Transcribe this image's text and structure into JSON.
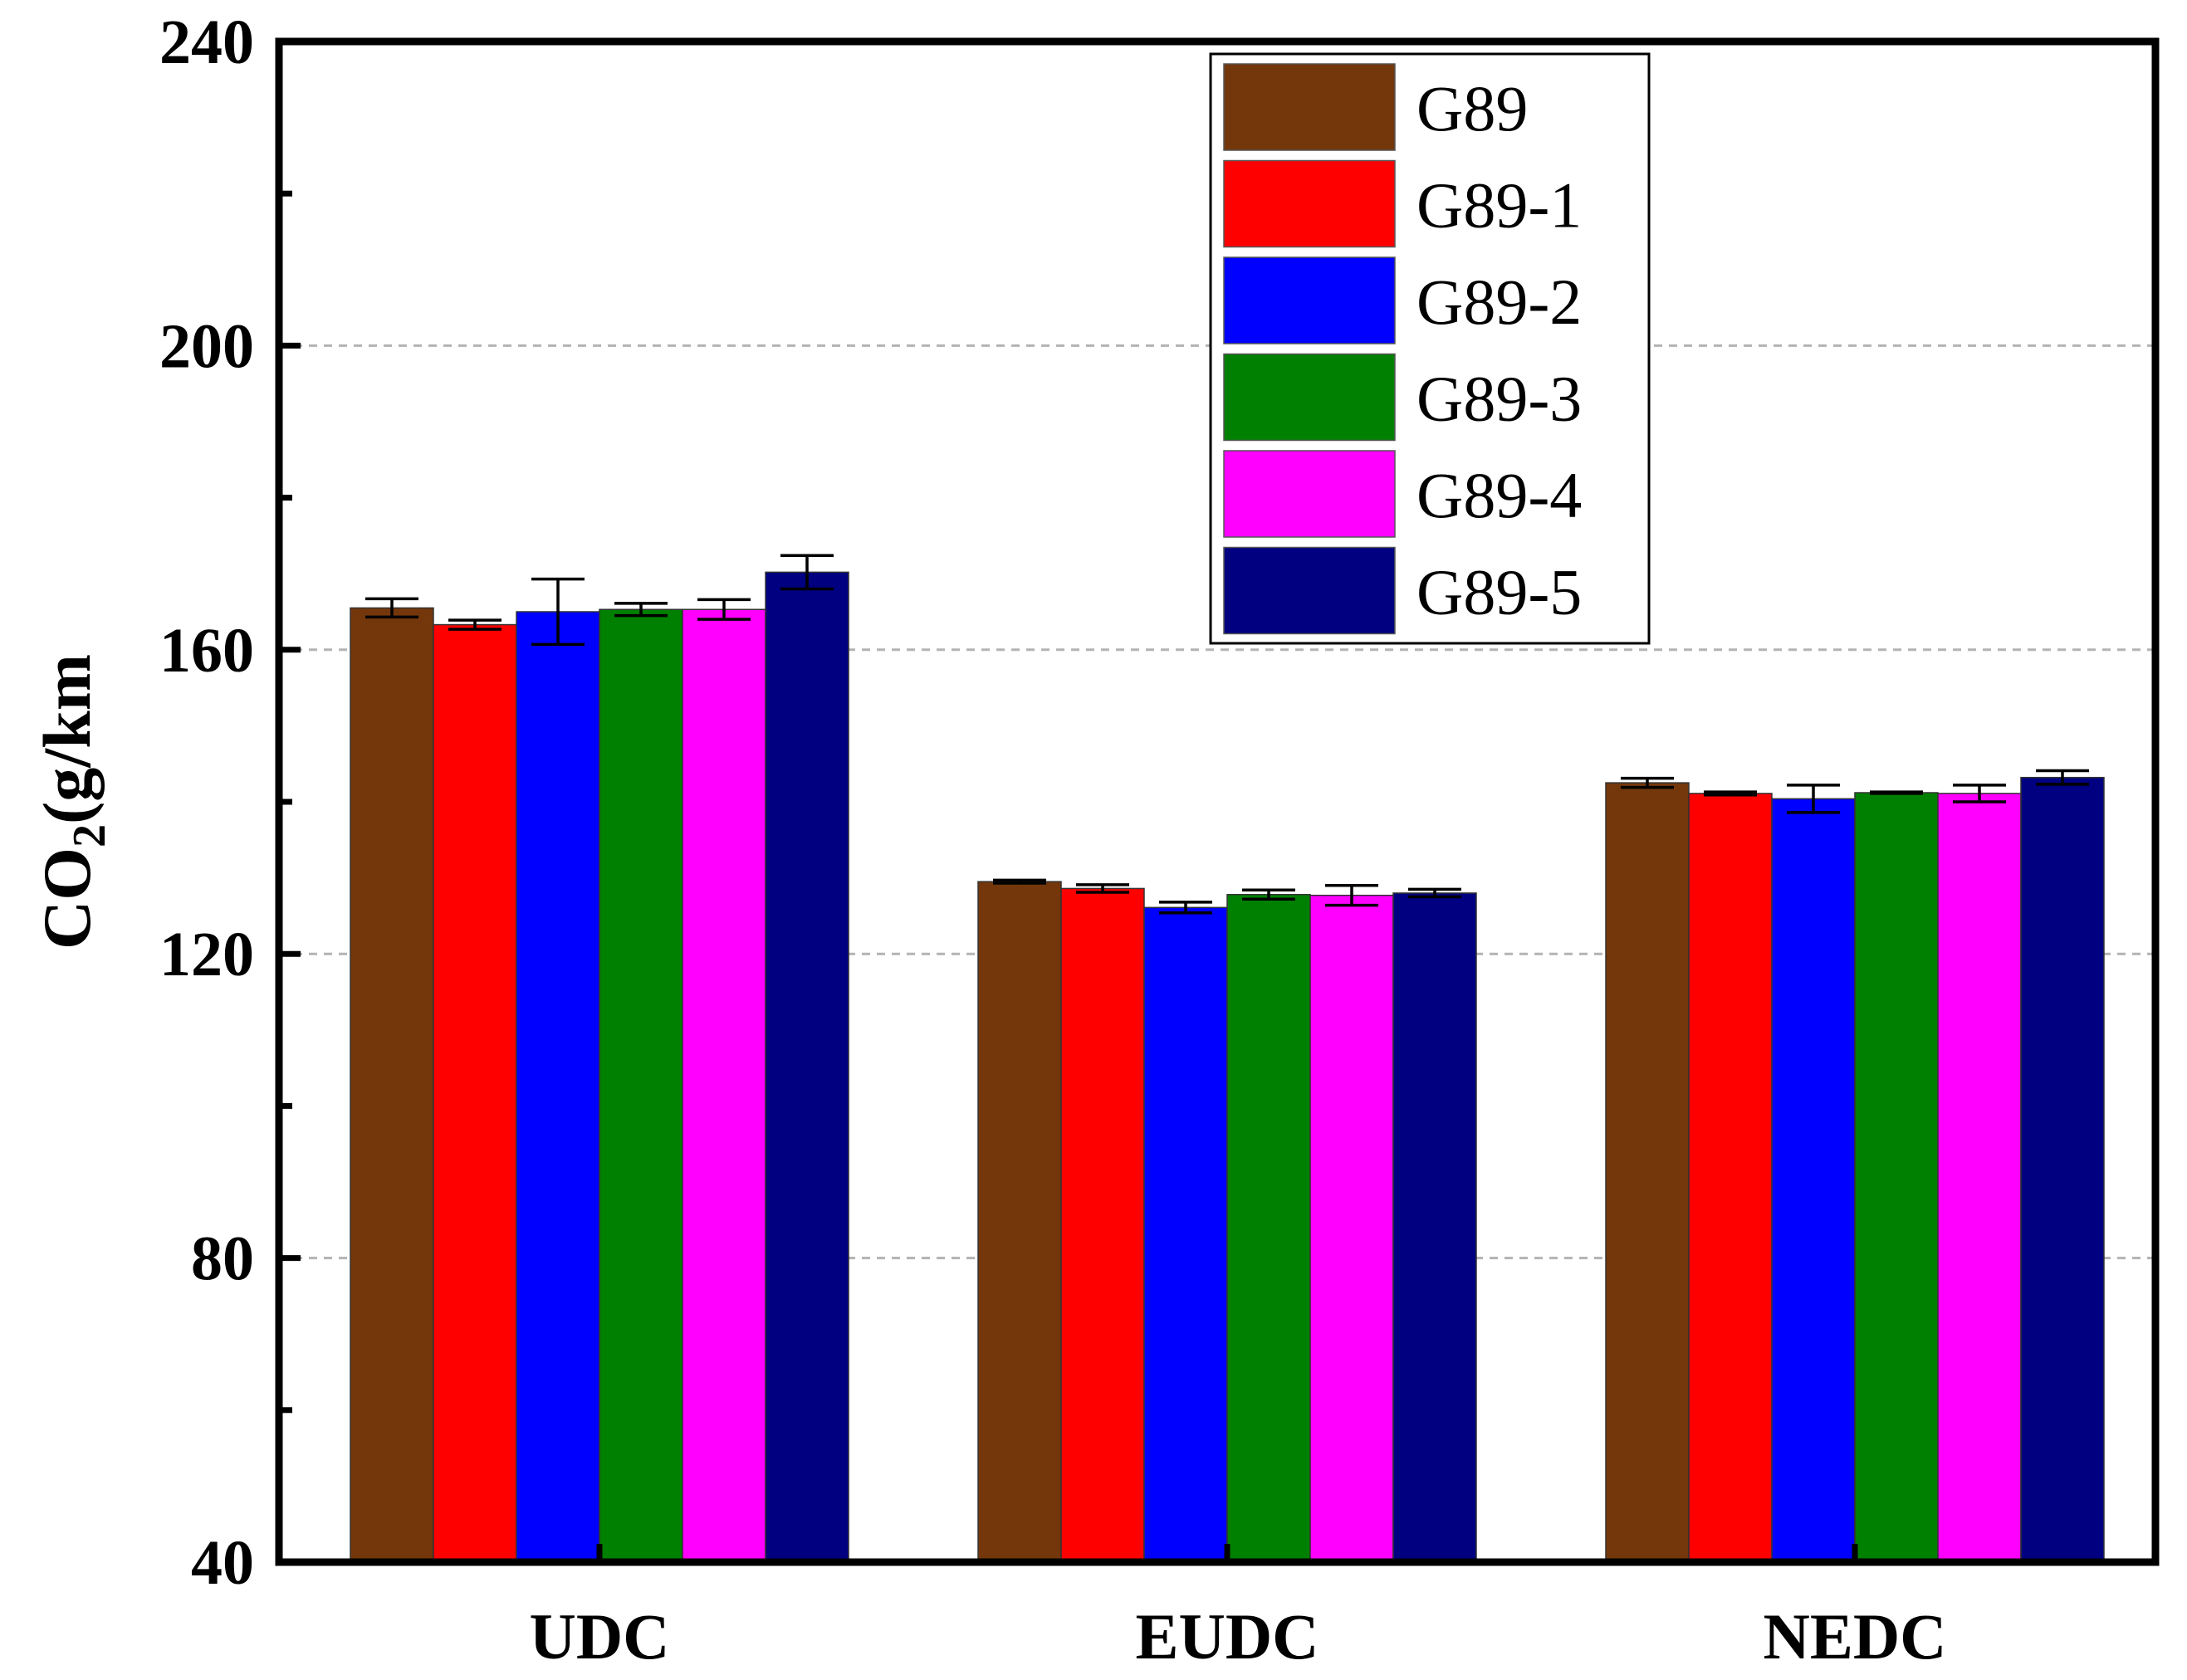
{
  "chart_data": {
    "type": "bar",
    "title": "",
    "xlabel": "",
    "ylabel": {
      "main": "CO",
      "sub": "2",
      "unit": "(g/km"
    },
    "ylim": [
      40,
      240
    ],
    "yticks": [
      "40",
      "80",
      "120",
      "160",
      "200",
      "240"
    ],
    "ytick_values": [
      40,
      80,
      120,
      160,
      200,
      240
    ],
    "minor_tick_step": 20,
    "grid": "dashed at 80, 120, 160, 200",
    "legend_position": "top-center",
    "categories": [
      "UDC",
      "EUDC",
      "NEDC"
    ],
    "series": [
      {
        "name": "G89",
        "color": "#74370b",
        "values": [
          165.5,
          129.5,
          142.5
        ],
        "errors": [
          1.2,
          0.2,
          0.6
        ]
      },
      {
        "name": "G89-1",
        "color": "#ff0000",
        "values": [
          163.3,
          128.6,
          141.1
        ],
        "errors": [
          0.6,
          0.5,
          0.2
        ]
      },
      {
        "name": "G89-2",
        "color": "#0000ff",
        "values": [
          165.0,
          126.1,
          140.4
        ],
        "errors": [
          4.3,
          0.7,
          1.8
        ]
      },
      {
        "name": "G89-3",
        "color": "#008000",
        "values": [
          165.3,
          127.8,
          141.2
        ],
        "errors": [
          0.8,
          0.6,
          0.1
        ]
      },
      {
        "name": "G89-4",
        "color": "#ff00ff",
        "values": [
          165.3,
          127.7,
          141.1
        ],
        "errors": [
          1.3,
          1.3,
          1.1
        ]
      },
      {
        "name": "G89-5",
        "color": "#000080",
        "values": [
          170.2,
          128.0,
          143.2
        ],
        "errors": [
          2.2,
          0.5,
          0.9
        ]
      }
    ]
  }
}
